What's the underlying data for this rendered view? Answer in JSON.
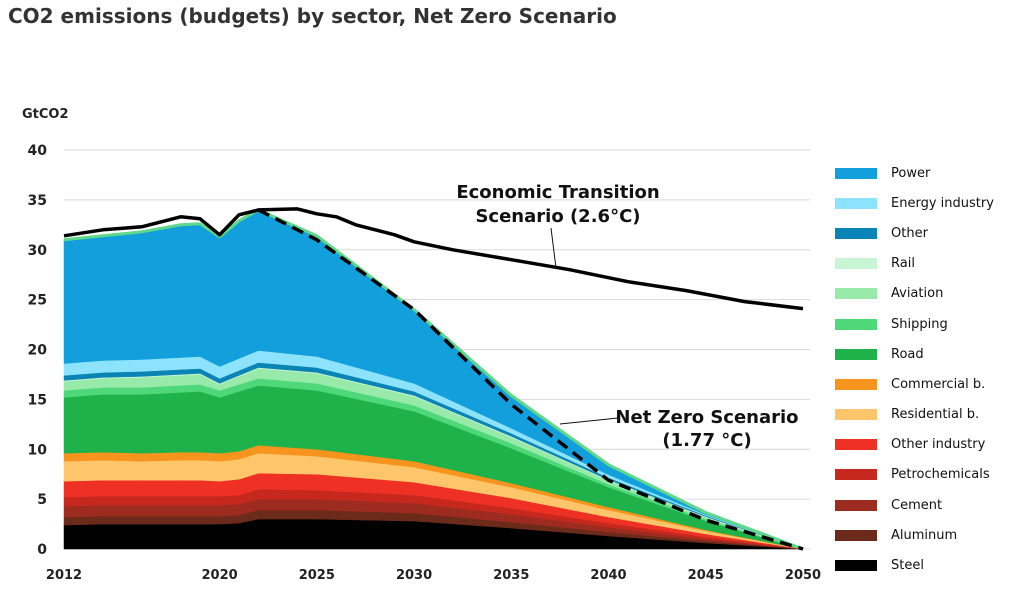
{
  "title": "CO2 emissions (budgets) by sector, Net Zero Scenario",
  "chart_data": {
    "type": "area",
    "ylabel": "GtCO2",
    "xlabel": "",
    "xlim": [
      2012,
      2050
    ],
    "ylim": [
      0,
      40
    ],
    "x_ticks": [
      2012,
      2020,
      2025,
      2030,
      2035,
      2040,
      2045,
      2050
    ],
    "y_ticks": [
      0,
      5,
      10,
      15,
      20,
      25,
      30,
      35,
      40
    ],
    "grid": true,
    "legend_position": "right",
    "x": [
      2012,
      2014,
      2016,
      2018,
      2019,
      2020,
      2021,
      2022,
      2025,
      2030,
      2035,
      2040,
      2045,
      2050
    ],
    "series": [
      {
        "name": "Steel",
        "color": "#000000",
        "values": [
          2.4,
          2.5,
          2.5,
          2.5,
          2.5,
          2.5,
          2.6,
          3.0,
          3.0,
          2.8,
          2.1,
          1.3,
          0.6,
          0.0
        ]
      },
      {
        "name": "Aluminum",
        "color": "#6b2a1a",
        "values": [
          0.8,
          0.8,
          0.8,
          0.8,
          0.8,
          0.8,
          0.8,
          0.9,
          0.9,
          0.8,
          0.6,
          0.4,
          0.2,
          0.0
        ]
      },
      {
        "name": "Cement",
        "color": "#9e2b1f",
        "values": [
          1.1,
          1.1,
          1.1,
          1.1,
          1.1,
          1.1,
          1.1,
          1.1,
          1.1,
          1.0,
          0.8,
          0.5,
          0.2,
          0.0
        ]
      },
      {
        "name": "Petrochemicals",
        "color": "#c7281e",
        "values": [
          0.9,
          0.9,
          0.9,
          0.9,
          0.9,
          0.9,
          0.9,
          1.0,
          0.9,
          0.8,
          0.6,
          0.4,
          0.2,
          0.0
        ]
      },
      {
        "name": "Other industry",
        "color": "#ee3124",
        "values": [
          1.6,
          1.6,
          1.6,
          1.6,
          1.6,
          1.5,
          1.6,
          1.6,
          1.6,
          1.3,
          1.0,
          0.6,
          0.3,
          0.0
        ]
      },
      {
        "name": "Residential b.",
        "color": "#fec56a",
        "values": [
          2.0,
          2.0,
          1.9,
          2.0,
          2.0,
          2.0,
          2.0,
          2.0,
          1.8,
          1.5,
          1.1,
          0.7,
          0.3,
          0.0
        ]
      },
      {
        "name": "Commercial b.",
        "color": "#f7941d",
        "values": [
          0.8,
          0.8,
          0.8,
          0.8,
          0.8,
          0.8,
          0.8,
          0.8,
          0.7,
          0.6,
          0.4,
          0.3,
          0.1,
          0.0
        ]
      },
      {
        "name": "Road",
        "color": "#1fb24a",
        "values": [
          5.6,
          5.8,
          5.9,
          6.0,
          6.1,
          5.6,
          6.0,
          6.0,
          5.9,
          5.0,
          3.5,
          2.0,
          0.9,
          0.0
        ]
      },
      {
        "name": "Shipping",
        "color": "#4fd87a",
        "values": [
          0.7,
          0.7,
          0.7,
          0.7,
          0.7,
          0.7,
          0.7,
          0.7,
          0.7,
          0.6,
          0.5,
          0.3,
          0.2,
          0.0
        ]
      },
      {
        "name": "Aviation",
        "color": "#97eaa9",
        "values": [
          0.9,
          0.9,
          1.0,
          1.0,
          1.0,
          0.6,
          0.8,
          1.0,
          1.0,
          0.9,
          0.6,
          0.4,
          0.2,
          0.0
        ]
      },
      {
        "name": "Rail",
        "color": "#c8f5d3",
        "values": [
          0.1,
          0.1,
          0.1,
          0.1,
          0.1,
          0.1,
          0.1,
          0.1,
          0.1,
          0.1,
          0.1,
          0.05,
          0.05,
          0.0
        ]
      },
      {
        "name": "Other",
        "color": "#0a84b5",
        "values": [
          0.5,
          0.5,
          0.5,
          0.5,
          0.5,
          0.5,
          0.5,
          0.5,
          0.5,
          0.4,
          0.3,
          0.2,
          0.1,
          0.0
        ]
      },
      {
        "name": "Energy industry",
        "color": "#8de3fb",
        "values": [
          1.2,
          1.2,
          1.2,
          1.2,
          1.2,
          1.2,
          1.2,
          1.2,
          1.1,
          0.8,
          0.5,
          0.3,
          0.1,
          0.0
        ]
      },
      {
        "name": "Power",
        "color": "#139fdc",
        "values": [
          12.4,
          12.5,
          12.8,
          13.3,
          13.3,
          13.0,
          13.8,
          14.1,
          12.1,
          7.4,
          3.3,
          1.0,
          0.2,
          0.0
        ]
      }
    ],
    "legend_order": [
      "Power",
      "Energy industry",
      "Other",
      "Rail",
      "Aviation",
      "Shipping",
      "Road",
      "Commercial b.",
      "Residential b.",
      "Other industry",
      "Petrochemicals",
      "Cement",
      "Aluminum",
      "Steel"
    ],
    "top_edge_color": "#5fd88a",
    "lines": [
      {
        "name": "Economic Transition Scenario (2.6°C)",
        "style": "solid",
        "color": "#000000",
        "x": [
          2012,
          2014,
          2016,
          2018,
          2019,
          2020,
          2021,
          2022,
          2024,
          2025,
          2026,
          2027,
          2028,
          2029,
          2030,
          2032,
          2035,
          2038,
          2041,
          2044,
          2047,
          2050
        ],
        "y": [
          31.4,
          32.0,
          32.3,
          33.3,
          33.1,
          31.5,
          33.5,
          34.0,
          34.1,
          33.6,
          33.3,
          32.5,
          32.0,
          31.5,
          30.8,
          30.0,
          29.0,
          28.0,
          26.8,
          25.9,
          24.8,
          24.1
        ]
      },
      {
        "name": "Net Zero Scenario (1.77 °C)",
        "style": "dashed",
        "color": "#000000",
        "x": [
          2022,
          2025,
          2030,
          2035,
          2040,
          2045,
          2050
        ],
        "y": [
          34.0,
          31.0,
          24.0,
          14.5,
          6.9,
          2.9,
          0.0
        ]
      }
    ],
    "annotations": [
      {
        "line1": "Economic Transition",
        "line2": "Scenario (2.6°C)"
      },
      {
        "line1": "Net Zero Scenario",
        "line2": "(1.77 °C)"
      }
    ]
  }
}
